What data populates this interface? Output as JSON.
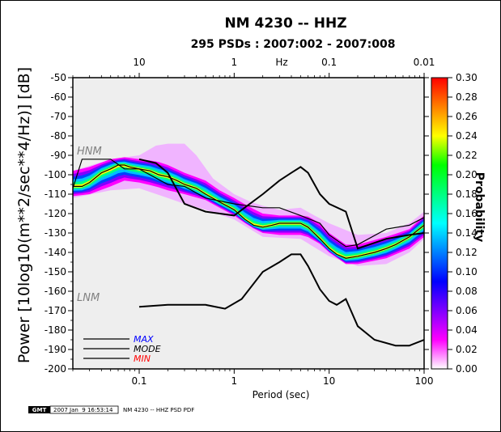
{
  "header": {
    "title": "NM 4230 -- HHZ",
    "subtitle": "295 PSDs : 2007:002 - 2007:008"
  },
  "chart_data": {
    "type": "heatmap",
    "title": "NM 4230 -- HHZ",
    "subtitle": "295 PSDs : 2007:002 - 2007:008",
    "xlabel": "Period (sec)",
    "x_top_label": "Hz",
    "ylabel": "Power [10log10(m**2/sec**4/Hz)] [dB]",
    "colorbar_label": "Probability",
    "x_scale": "log",
    "xlim": [
      0.02,
      100
    ],
    "ylim": [
      -200,
      -50
    ],
    "x_ticks": [
      {
        "value": 0.1,
        "label": "0.1"
      },
      {
        "value": 1,
        "label": "1"
      },
      {
        "value": 10,
        "label": "10"
      },
      {
        "value": 100,
        "label": "100"
      }
    ],
    "x_top_ticks": [
      {
        "period": 0.1,
        "label": "10"
      },
      {
        "period": 1,
        "label": "1"
      },
      {
        "period": 10,
        "label": "0.1"
      },
      {
        "period": 100,
        "label": "0.01"
      }
    ],
    "y_ticks": [
      {
        "value": -50,
        "label": "-50"
      },
      {
        "value": -60,
        "label": "-60"
      },
      {
        "value": -70,
        "label": "-70"
      },
      {
        "value": -80,
        "label": "-80"
      },
      {
        "value": -90,
        "label": "-90"
      },
      {
        "value": -100,
        "label": "-100"
      },
      {
        "value": -110,
        "label": "-110"
      },
      {
        "value": -120,
        "label": "-120"
      },
      {
        "value": -130,
        "label": "-130"
      },
      {
        "value": -140,
        "label": "-140"
      },
      {
        "value": -150,
        "label": "-150"
      },
      {
        "value": -160,
        "label": "-160"
      },
      {
        "value": -170,
        "label": "-170"
      },
      {
        "value": -180,
        "label": "-180"
      },
      {
        "value": -190,
        "label": "-190"
      },
      {
        "value": -200,
        "label": "-200"
      }
    ],
    "colorbar": {
      "range": [
        0,
        0.3
      ],
      "ticks": [
        {
          "value": 0.0,
          "label": "0.00"
        },
        {
          "value": 0.02,
          "label": "0.02"
        },
        {
          "value": 0.04,
          "label": "0.04"
        },
        {
          "value": 0.06,
          "label": "0.06"
        },
        {
          "value": 0.08,
          "label": "0.08"
        },
        {
          "value": 0.1,
          "label": "0.10"
        },
        {
          "value": 0.12,
          "label": "0.12"
        },
        {
          "value": 0.14,
          "label": "0.14"
        },
        {
          "value": 0.16,
          "label": "0.16"
        },
        {
          "value": 0.18,
          "label": "0.18"
        },
        {
          "value": 0.2,
          "label": "0.20"
        },
        {
          "value": 0.22,
          "label": "0.22"
        },
        {
          "value": 0.24,
          "label": "0.24"
        },
        {
          "value": 0.26,
          "label": "0.26"
        },
        {
          "value": 0.28,
          "label": "0.28"
        },
        {
          "value": 0.3,
          "label": "0.30"
        }
      ],
      "colors": [
        "#ffffff",
        "#ff00ff",
        "#8000ff",
        "#0000ff",
        "#0080ff",
        "#00ffff",
        "#00ff80",
        "#00ff00",
        "#ffff00",
        "#ff8000",
        "#ff0000"
      ]
    },
    "mode_curve": [
      [
        0.02,
        -106
      ],
      [
        0.025,
        -106
      ],
      [
        0.03,
        -104
      ],
      [
        0.04,
        -99
      ],
      [
        0.05,
        -97
      ],
      [
        0.06,
        -95
      ],
      [
        0.07,
        -95
      ],
      [
        0.08,
        -96
      ],
      [
        0.1,
        -97
      ],
      [
        0.13,
        -98
      ],
      [
        0.16,
        -100
      ],
      [
        0.2,
        -101
      ],
      [
        0.25,
        -103
      ],
      [
        0.3,
        -105
      ],
      [
        0.4,
        -107
      ],
      [
        0.5,
        -110
      ],
      [
        0.7,
        -114
      ],
      [
        1,
        -118
      ],
      [
        1.3,
        -123
      ],
      [
        1.6,
        -126
      ],
      [
        2,
        -127
      ],
      [
        2.5,
        -126
      ],
      [
        3,
        -125
      ],
      [
        4,
        -125
      ],
      [
        5,
        -125
      ],
      [
        6,
        -127
      ],
      [
        8,
        -133
      ],
      [
        10,
        -138
      ],
      [
        12,
        -141
      ],
      [
        15,
        -143
      ],
      [
        20,
        -142
      ],
      [
        30,
        -140
      ],
      [
        40,
        -138
      ],
      [
        50,
        -136
      ],
      [
        70,
        -132
      ],
      [
        100,
        -126
      ]
    ],
    "band_upper": [
      [
        0.02,
        -98
      ],
      [
        0.03,
        -96
      ],
      [
        0.05,
        -92
      ],
      [
        0.07,
        -91
      ],
      [
        0.1,
        -92
      ],
      [
        0.15,
        -93
      ],
      [
        0.2,
        -95
      ],
      [
        0.3,
        -99
      ],
      [
        0.5,
        -103
      ],
      [
        0.7,
        -108
      ],
      [
        1,
        -112
      ],
      [
        1.5,
        -117
      ],
      [
        2,
        -120
      ],
      [
        3,
        -121
      ],
      [
        5,
        -121
      ],
      [
        7,
        -122
      ],
      [
        10,
        -130
      ],
      [
        15,
        -136
      ],
      [
        20,
        -136
      ],
      [
        40,
        -132
      ],
      [
        70,
        -128
      ],
      [
        100,
        -121
      ]
    ],
    "band_lower": [
      [
        0.02,
        -111
      ],
      [
        0.03,
        -110
      ],
      [
        0.05,
        -106
      ],
      [
        0.07,
        -103
      ],
      [
        0.1,
        -104
      ],
      [
        0.15,
        -106
      ],
      [
        0.2,
        -108
      ],
      [
        0.3,
        -110
      ],
      [
        0.5,
        -113
      ],
      [
        0.7,
        -117
      ],
      [
        1,
        -121
      ],
      [
        1.5,
        -127
      ],
      [
        2,
        -130
      ],
      [
        3,
        -131
      ],
      [
        5,
        -131
      ],
      [
        7,
        -133
      ],
      [
        10,
        -140
      ],
      [
        15,
        -146
      ],
      [
        20,
        -146
      ],
      [
        40,
        -143
      ],
      [
        70,
        -138
      ],
      [
        100,
        -132
      ]
    ],
    "sparse_upper": [
      [
        0.02,
        -98
      ],
      [
        0.05,
        -92
      ],
      [
        0.1,
        -90
      ],
      [
        0.15,
        -85
      ],
      [
        0.2,
        -84
      ],
      [
        0.3,
        -84
      ],
      [
        0.4,
        -90
      ],
      [
        0.6,
        -102
      ],
      [
        1,
        -110
      ],
      [
        1.5,
        -114
      ],
      [
        2,
        -116
      ],
      [
        3,
        -118
      ],
      [
        5,
        -117
      ],
      [
        7,
        -121
      ],
      [
        10,
        -125
      ],
      [
        20,
        -131
      ],
      [
        40,
        -130
      ],
      [
        70,
        -125
      ],
      [
        100,
        -119
      ]
    ],
    "sparse_lower": [
      [
        0.02,
        -112
      ],
      [
        0.05,
        -108
      ],
      [
        0.1,
        -107
      ],
      [
        0.2,
        -112
      ],
      [
        0.3,
        -115
      ],
      [
        0.5,
        -118
      ],
      [
        1,
        -123
      ],
      [
        2,
        -132
      ],
      [
        5,
        -133
      ],
      [
        10,
        -142
      ],
      [
        20,
        -147
      ],
      [
        40,
        -146
      ],
      [
        70,
        -140
      ],
      [
        100,
        -133
      ]
    ],
    "max_curve": [
      [
        0.1,
        -92
      ],
      [
        0.15,
        -94
      ],
      [
        0.2,
        -99
      ],
      [
        0.3,
        -115
      ],
      [
        0.5,
        -119
      ],
      [
        1,
        -121
      ],
      [
        2,
        -110
      ],
      [
        3,
        -103
      ],
      [
        4,
        -99
      ],
      [
        5,
        -96
      ],
      [
        6,
        -99
      ],
      [
        8,
        -110
      ],
      [
        10,
        -115
      ],
      [
        15,
        -119
      ],
      [
        20,
        -138
      ],
      [
        40,
        -133
      ],
      [
        70,
        -131
      ],
      [
        100,
        -130
      ]
    ],
    "min_curve": [
      [
        0.1,
        -168
      ],
      [
        0.2,
        -167
      ],
      [
        0.5,
        -167
      ],
      [
        0.8,
        -169
      ],
      [
        1.2,
        -164
      ],
      [
        2,
        -150
      ],
      [
        3,
        -145
      ],
      [
        4,
        -141
      ],
      [
        5,
        -141
      ],
      [
        6,
        -147
      ],
      [
        8,
        -159
      ],
      [
        10,
        -165
      ],
      [
        12,
        -167
      ],
      [
        15,
        -164
      ],
      [
        20,
        -178
      ],
      [
        30,
        -185
      ],
      [
        50,
        -188
      ],
      [
        70,
        -188
      ],
      [
        100,
        -185
      ]
    ],
    "hnm_curve": [
      [
        0.02,
        -107
      ],
      [
        0.025,
        -92
      ],
      [
        0.05,
        -92
      ],
      [
        0.07,
        -97
      ],
      [
        0.1,
        -97
      ],
      [
        0.2,
        -105
      ],
      [
        0.3,
        -106
      ],
      [
        0.5,
        -112
      ],
      [
        1,
        -115
      ],
      [
        2,
        -117
      ],
      [
        3,
        -117
      ],
      [
        5,
        -121
      ],
      [
        8,
        -125
      ],
      [
        10,
        -131
      ],
      [
        15,
        -137
      ],
      [
        20,
        -136
      ],
      [
        40,
        -128
      ],
      [
        70,
        -126
      ],
      [
        100,
        -122
      ]
    ],
    "lnm_label": "LNM",
    "hnm_label": "HNM",
    "legend": [
      {
        "label": "MAX",
        "color": "#0000ff"
      },
      {
        "label": "MODE",
        "color": "#000000"
      },
      {
        "label": "MIN",
        "color": "#ff0000"
      }
    ]
  },
  "footer": {
    "logo": "GMT",
    "timestamp": "2007 Jan  9 16:53:14",
    "caption": "NM 4230 -- HHZ PSD PDF"
  }
}
